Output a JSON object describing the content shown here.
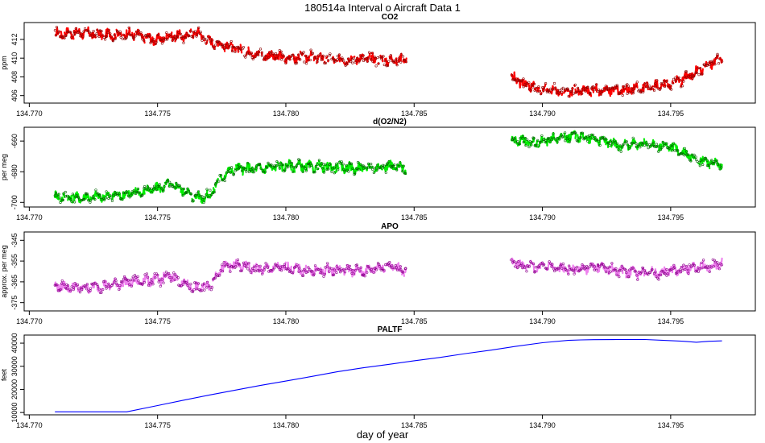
{
  "figure": {
    "title": "180514a   Interval o Aircraft Data 1",
    "xlabel": "day of year"
  },
  "chart_data": [
    {
      "type": "scatter",
      "title": "CO2",
      "ylabel": "ppm",
      "xlim": [
        134.7698,
        134.7983
      ],
      "ylim": [
        405.2,
        413.8
      ],
      "xticks": [
        "134.770",
        "134.775",
        "134.780",
        "134.785",
        "134.790",
        "134.795"
      ],
      "yticks": [
        "406",
        "408",
        "410",
        "412"
      ],
      "line_color": "#ff0000",
      "marker_color": "#8b0000",
      "series": [
        {
          "x": [
            134.771,
            134.772,
            134.773,
            134.774,
            134.775,
            134.7755,
            134.776,
            134.7765,
            134.777,
            134.7775,
            134.778,
            134.779,
            134.78,
            134.781,
            134.782,
            134.783,
            134.784,
            134.7847
          ],
          "y": [
            412.6,
            412.7,
            412.5,
            412.6,
            411.9,
            412.4,
            412.3,
            412.8,
            411.8,
            411.5,
            411.0,
            410.4,
            410.0,
            410.1,
            409.8,
            410.0,
            409.8,
            409.9
          ]
        },
        {
          "x": [
            134.7888,
            134.7892,
            134.7897,
            134.7902,
            134.7908,
            134.7915,
            134.7922,
            134.793,
            134.794,
            134.795,
            134.7955,
            134.796,
            134.7965,
            134.797
          ],
          "y": [
            408.0,
            407.3,
            406.8,
            406.6,
            406.4,
            406.5,
            406.6,
            406.6,
            406.8,
            407.3,
            407.8,
            408.5,
            409.3,
            410.1
          ]
        }
      ]
    },
    {
      "type": "scatter",
      "title": "d(O2/N2)",
      "ylabel": "per meg",
      "xlim": [
        134.7698,
        134.7983
      ],
      "ylim": [
        -703,
        -651
      ],
      "xticks": [
        "134.770",
        "134.775",
        "134.780",
        "134.785",
        "134.790",
        "134.795"
      ],
      "yticks": [
        "-700",
        "-680",
        "-660"
      ],
      "line_color": "#00ee00",
      "marker_color": "#006400",
      "series": [
        {
          "x": [
            134.771,
            134.772,
            134.773,
            134.774,
            134.775,
            134.7755,
            134.776,
            134.7765,
            134.777,
            134.7775,
            134.778,
            134.779,
            134.78,
            134.781,
            134.782,
            134.783,
            134.784,
            134.7847
          ],
          "y": [
            -696,
            -697,
            -696,
            -694,
            -691,
            -688,
            -692,
            -697,
            -696,
            -683,
            -678,
            -678,
            -676,
            -677,
            -677,
            -678,
            -676,
            -678
          ]
        },
        {
          "x": [
            134.7888,
            134.7892,
            134.7897,
            134.7902,
            134.7908,
            134.7915,
            134.7922,
            134.793,
            134.794,
            134.795,
            134.7955,
            134.796,
            134.7965,
            134.797
          ],
          "y": [
            -659,
            -660,
            -661,
            -659,
            -657,
            -657,
            -659,
            -663,
            -662,
            -664,
            -668,
            -671,
            -674,
            -676
          ]
        }
      ]
    },
    {
      "type": "scatter",
      "title": "APO",
      "ylabel": "approx. per meg",
      "xlim": [
        134.7698,
        134.7983
      ],
      "ylim": [
        -379,
        -341
      ],
      "xticks": [
        "134.770",
        "134.775",
        "134.780",
        "134.785",
        "134.790",
        "134.795"
      ],
      "yticks": [
        "-375",
        "-365",
        "-355",
        "-345"
      ],
      "line_color": "#ee82ee",
      "marker_color": "#8b008b",
      "series": [
        {
          "x": [
            134.771,
            134.772,
            134.773,
            134.774,
            134.775,
            134.7755,
            134.776,
            134.7765,
            134.777,
            134.7775,
            134.778,
            134.779,
            134.78,
            134.781,
            134.782,
            134.783,
            134.784,
            134.7847
          ],
          "y": [
            -367,
            -368,
            -367,
            -365,
            -364,
            -362,
            -366,
            -368,
            -367,
            -358,
            -357,
            -359,
            -358,
            -360,
            -359,
            -360,
            -357,
            -360
          ]
        },
        {
          "x": [
            134.7888,
            134.7892,
            134.7897,
            134.7902,
            134.7908,
            134.7915,
            134.7922,
            134.793,
            134.794,
            134.795,
            134.7955,
            134.796,
            134.7965,
            134.797
          ],
          "y": [
            -355,
            -357,
            -358,
            -357,
            -359,
            -359,
            -358,
            -360,
            -361,
            -360,
            -359,
            -358,
            -358,
            -356
          ]
        }
      ]
    },
    {
      "type": "line",
      "title": "PALTF",
      "ylabel": "feet",
      "xlabel": "day of year",
      "xlim": [
        134.7698,
        134.7983
      ],
      "ylim": [
        9000,
        43500
      ],
      "xticks": [
        "134.770",
        "134.775",
        "134.780",
        "134.785",
        "134.790",
        "134.795"
      ],
      "yticks": [
        "10000",
        "20000",
        "30000",
        "40000"
      ],
      "line_color": "#0000ff",
      "series": [
        {
          "x": [
            134.771,
            134.7738,
            134.775,
            134.776,
            134.777,
            134.778,
            134.779,
            134.78,
            134.781,
            134.782,
            134.783,
            134.784,
            134.785,
            134.786,
            134.787,
            134.788,
            134.789,
            134.79,
            134.791,
            134.7915,
            134.792,
            134.793,
            134.794,
            134.795,
            134.7955,
            134.796,
            134.7965,
            134.797
          ],
          "y": [
            10300,
            10300,
            13000,
            15300,
            17500,
            19600,
            21700,
            23600,
            25600,
            27600,
            29300,
            30800,
            32400,
            33800,
            35500,
            37000,
            38700,
            40200,
            41200,
            41400,
            41500,
            41600,
            41600,
            41100,
            40800,
            40400,
            40800,
            41000
          ]
        }
      ]
    }
  ]
}
